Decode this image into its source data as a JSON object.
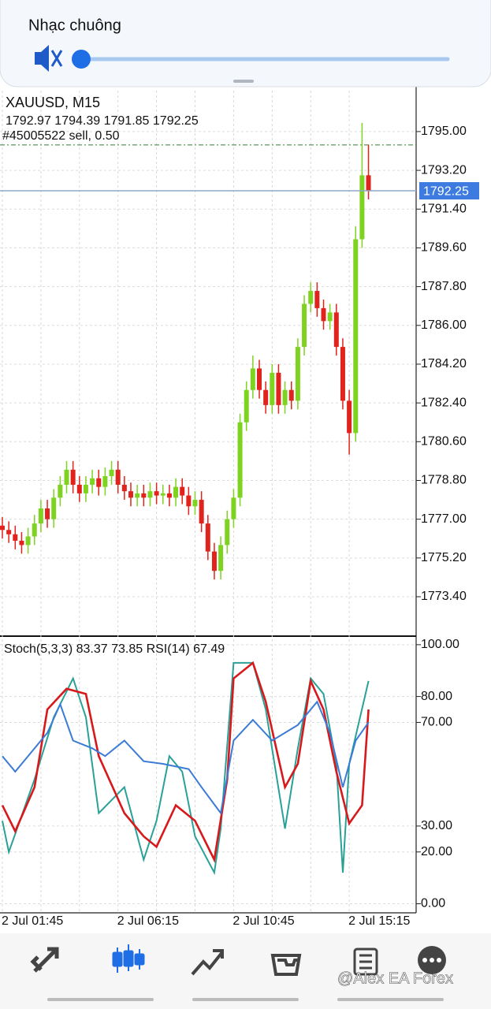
{
  "overlay": {
    "label": "Nhạc chuông"
  },
  "chart_data": [
    {
      "type": "candlestick",
      "title": "XAUUSD, M15",
      "categories": [
        "2 Jul 01:45",
        null,
        null,
        null,
        null,
        null,
        null,
        null,
        null,
        null,
        null,
        null,
        null,
        null,
        null,
        null,
        null,
        null,
        "2 Jul 06:15",
        null,
        null,
        null,
        null,
        null,
        null,
        null,
        null,
        null,
        null,
        null,
        null,
        null,
        null,
        null,
        null,
        null,
        "2 Jul 10:45",
        null,
        null,
        null,
        null,
        null,
        null,
        null,
        null,
        null,
        null,
        null,
        null,
        null,
        null,
        null,
        null,
        null,
        "2 Jul 15:15",
        null,
        null,
        null
      ],
      "open": [
        1776.7,
        1776.5,
        1776.3,
        1776.0,
        1775.8,
        1776.2,
        1776.8,
        1777.5,
        1777.0,
        1778.0,
        1778.6,
        1779.3,
        1778.6,
        1778.2,
        1778.6,
        1778.9,
        1778.5,
        1779.0,
        1779.3,
        1778.6,
        1778.3,
        1778.0,
        1778.2,
        1778.0,
        1778.3,
        1778.1,
        1778.2,
        1778.0,
        1778.5,
        1778.1,
        1777.6,
        1777.9,
        1776.8,
        1775.5,
        1774.6,
        1775.8,
        1777.0,
        1778.0,
        1781.5,
        1783.0,
        1784.0,
        1783.0,
        1782.3,
        1783.8,
        1782.3,
        1783.0,
        1782.5,
        1785.0,
        1787.0,
        1787.6,
        1786.8,
        1786.2,
        1786.6,
        1785.0,
        1782.5,
        1781.0,
        1790.0,
        1792.97
      ],
      "high": [
        1777.1,
        1776.9,
        1776.7,
        1776.4,
        1776.6,
        1777.2,
        1777.9,
        1777.9,
        1778.4,
        1779.0,
        1779.7,
        1779.7,
        1779.0,
        1779.0,
        1779.3,
        1779.3,
        1779.4,
        1779.7,
        1779.7,
        1779.0,
        1778.7,
        1778.6,
        1778.6,
        1778.7,
        1778.7,
        1778.6,
        1778.6,
        1778.9,
        1778.9,
        1778.5,
        1778.3,
        1778.3,
        1777.2,
        1775.9,
        1776.2,
        1777.4,
        1778.4,
        1781.9,
        1783.4,
        1784.6,
        1784.4,
        1783.4,
        1784.2,
        1784.2,
        1783.4,
        1783.4,
        1785.4,
        1787.4,
        1788.0,
        1788.0,
        1787.2,
        1787.0,
        1787.0,
        1785.4,
        1783.0,
        1790.6,
        1795.4,
        1794.39
      ],
      "low": [
        1776.1,
        1775.9,
        1775.6,
        1775.4,
        1775.4,
        1775.8,
        1776.4,
        1776.6,
        1776.6,
        1777.6,
        1778.2,
        1778.2,
        1777.8,
        1777.8,
        1778.2,
        1778.1,
        1778.1,
        1778.6,
        1778.2,
        1777.9,
        1777.6,
        1777.6,
        1777.6,
        1777.6,
        1777.7,
        1777.7,
        1777.6,
        1777.6,
        1777.7,
        1777.2,
        1777.2,
        1776.4,
        1775.1,
        1774.2,
        1774.2,
        1775.4,
        1776.6,
        1777.6,
        1781.1,
        1782.6,
        1782.6,
        1781.9,
        1781.9,
        1781.9,
        1781.9,
        1782.1,
        1782.1,
        1784.6,
        1786.6,
        1786.4,
        1785.8,
        1785.8,
        1784.6,
        1782.1,
        1780.0,
        1780.6,
        1789.6,
        1791.85
      ],
      "close": [
        1776.5,
        1776.3,
        1776.0,
        1775.8,
        1776.2,
        1776.8,
        1777.5,
        1777.0,
        1778.0,
        1778.6,
        1779.3,
        1778.6,
        1778.2,
        1778.6,
        1778.9,
        1778.5,
        1779.0,
        1779.3,
        1778.6,
        1778.3,
        1778.0,
        1778.2,
        1778.0,
        1778.3,
        1778.1,
        1778.2,
        1778.0,
        1778.5,
        1778.1,
        1777.6,
        1777.9,
        1776.8,
        1775.5,
        1774.6,
        1775.8,
        1777.0,
        1778.0,
        1781.5,
        1783.0,
        1784.0,
        1783.0,
        1782.3,
        1783.8,
        1782.3,
        1783.0,
        1782.5,
        1785.0,
        1787.0,
        1787.6,
        1786.8,
        1786.2,
        1786.6,
        1785.0,
        1782.5,
        1781.0,
        1790.0,
        1792.97,
        1792.25
      ],
      "up_color": "#7ed321",
      "down_color": "#e0231c",
      "order_label": "#45005522 sell, 0.50",
      "order_price": 1794.38,
      "ylim": [
        1771.57,
        1796.9
      ],
      "yticks": [
        {
          "value": 1795.0,
          "label": "1795.00"
        },
        {
          "value": 1793.2,
          "label": "1793.20"
        },
        {
          "value": 1791.4,
          "label": "1791.40"
        },
        {
          "value": 1789.6,
          "label": "1789.60"
        },
        {
          "value": 1787.8,
          "label": "1787.80"
        },
        {
          "value": 1786.0,
          "label": "1786.00"
        },
        {
          "value": 1784.2,
          "label": "1784.20"
        },
        {
          "value": 1782.4,
          "label": "1782.40"
        },
        {
          "value": 1780.6,
          "label": "1780.60"
        },
        {
          "value": 1778.8,
          "label": "1778.80"
        },
        {
          "value": 1777.0,
          "label": "1777.00"
        },
        {
          "value": 1775.2,
          "label": "1775.20"
        },
        {
          "value": 1773.4,
          "label": "1773.40"
        }
      ],
      "grid": true
    },
    {
      "type": "line",
      "title": "Stoch(5,3,3) 83.37 73.85 RSI(14) 67.49",
      "series": [
        {
          "color": "#2aa198",
          "x": [
            0,
            1,
            5,
            8,
            11,
            13,
            15,
            19,
            22,
            24,
            26,
            28,
            30,
            33,
            34,
            36,
            39,
            41,
            44,
            46,
            48,
            50,
            52,
            53,
            54,
            57
          ],
          "values": [
            32,
            20,
            48,
            72,
            87,
            72,
            35,
            45,
            17,
            32,
            57,
            51,
            26,
            12,
            29,
            93,
            93,
            75,
            29,
            60,
            87,
            81,
            54,
            12,
            54,
            86
          ]
        },
        {
          "color": "#d7191c",
          "x": [
            0,
            2,
            5,
            7,
            10,
            13,
            15,
            19,
            22,
            24,
            27,
            30,
            33,
            35,
            36,
            39,
            41,
            44,
            46,
            48,
            50,
            52,
            54,
            56,
            57
          ],
          "values": [
            38,
            28,
            45,
            75,
            83,
            81,
            57,
            35,
            26,
            22,
            38,
            32,
            17,
            48,
            87,
            93,
            78,
            45,
            54,
            86,
            75,
            51,
            31,
            38,
            75
          ]
        },
        {
          "color": "#3a7bd5",
          "x": [
            0,
            2,
            4,
            7,
            9,
            11,
            14,
            16,
            19,
            22,
            25,
            29,
            31,
            34,
            36,
            39,
            42,
            46,
            49,
            51,
            53,
            55,
            57
          ],
          "values": [
            57,
            51,
            57,
            66,
            77,
            63,
            60,
            57,
            63,
            55,
            54,
            52,
            45,
            35,
            63,
            71,
            63,
            69,
            78,
            66,
            45,
            63,
            70
          ]
        }
      ],
      "ylim": [
        -3.2,
        103
      ],
      "yticks": [
        {
          "value": 100,
          "label": "100.00"
        },
        {
          "value": 80,
          "label": "80.00"
        },
        {
          "value": 70,
          "label": "70.00"
        },
        {
          "value": 30,
          "label": "30.00"
        },
        {
          "value": 20,
          "label": "20.00"
        },
        {
          "value": 0,
          "label": "0.00"
        }
      ]
    }
  ],
  "watermark": "@Alex EA Forex"
}
